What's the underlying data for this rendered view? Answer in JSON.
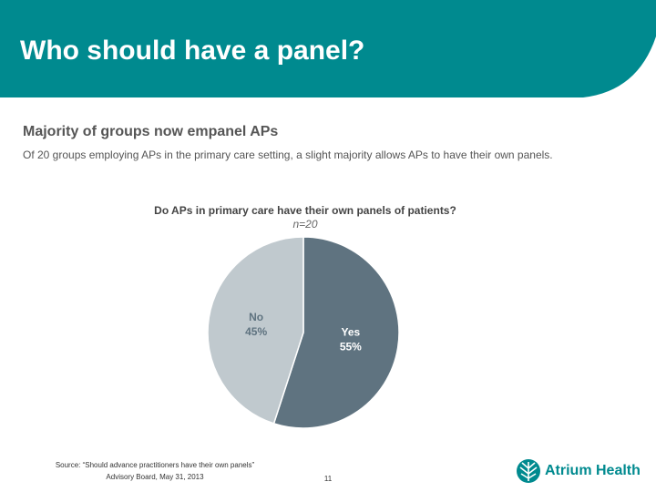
{
  "slide": {
    "title": "Who should have a panel?",
    "source": [
      "Source: “Should advance practitioners have their own panels”",
      "Advisory Board, May 31, 2013"
    ],
    "page_number": "11",
    "logo": "Atrium Health"
  },
  "chart_data": {
    "type": "pie",
    "heading": "Majority of groups now empanel APs",
    "description": "Of 20 groups employing APs in the primary care setting, a slight majority allows APs to have their own panels.",
    "title": "Do APs in primary care have their own panels of patients?",
    "subtitle": "n=20",
    "categories": [
      "Yes",
      "No"
    ],
    "values": [
      55,
      45
    ],
    "value_labels": [
      "55%",
      "45%"
    ],
    "colors": [
      "#5f7380",
      "#c0c9ce"
    ],
    "label_colors": [
      "#ffffff",
      "#5f7380"
    ]
  }
}
